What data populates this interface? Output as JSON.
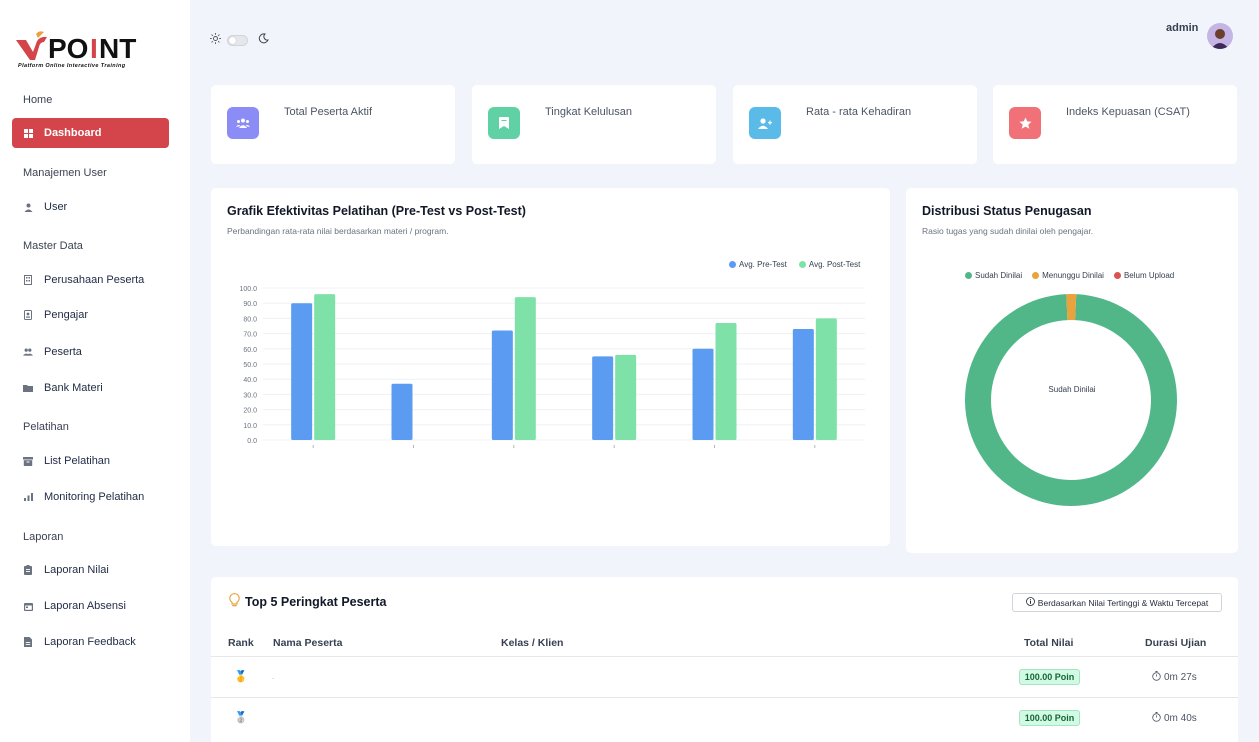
{
  "brand": {
    "name": "POINT",
    "tagline": "Platform Online Interactive Training"
  },
  "header": {
    "user_name": "admin"
  },
  "sidebar": {
    "sections": {
      "home": "Home",
      "user_mgmt": "Manajemen User",
      "master": "Master Data",
      "training": "Pelatihan",
      "report": "Laporan"
    },
    "items": {
      "dashboard": "Dashboard",
      "user": "User",
      "perusahaan": "Perusahaan Peserta",
      "pengajar": "Pengajar",
      "peserta": "Peserta",
      "bank_materi": "Bank Materi",
      "list_pelatihan": "List Pelatihan",
      "monitoring": "Monitoring Pelatihan",
      "laporan_nilai": "Laporan Nilai",
      "laporan_absensi": "Laporan Absensi",
      "laporan_feedback": "Laporan Feedback"
    }
  },
  "stats": [
    {
      "label": "Total Peserta Aktif",
      "color": "#8b8cf6",
      "icon": "users-icon"
    },
    {
      "label": "Tingkat Kelulusan",
      "color": "#5fd1a4",
      "icon": "bookmark-icon"
    },
    {
      "label": "Rata - rata Kehadiran",
      "color": "#5bbbe8",
      "icon": "user-plus-icon"
    },
    {
      "label": "Indeks Kepuasan (CSAT)",
      "color": "#f07178",
      "icon": "star-icon"
    }
  ],
  "effectiveness": {
    "title": "Grafik Efektivitas Pelatihan (Pre-Test vs Post-Test)",
    "subtitle": "Perbandingan rata-rata nilai berdasarkan materi / program."
  },
  "distribution": {
    "title": "Distribusi Status Penugasan",
    "subtitle": "Rasio tugas yang sudah dinilai oleh pengajar."
  },
  "chart_data": [
    {
      "type": "bar",
      "categories": [
        "",
        "",
        "",
        "",
        "",
        ""
      ],
      "series": [
        {
          "name": "Avg. Pre-Test",
          "color": "#5b9cf2",
          "values": [
            90,
            37,
            72,
            55,
            60,
            73
          ]
        },
        {
          "name": "Avg. Post-Test",
          "color": "#7ee2a8",
          "values": [
            96,
            null,
            94,
            56,
            77,
            80
          ]
        }
      ],
      "ylim": [
        0,
        100
      ],
      "yticks": [
        "0.0",
        "10.0",
        "20.0",
        "30.0",
        "40.0",
        "50.0",
        "60.0",
        "70.0",
        "80.0",
        "90.0",
        "100.0"
      ],
      "legend": "top-right",
      "grid": true
    },
    {
      "type": "pie",
      "labels": [
        "Sudah Dinilai",
        "Menunggu Dinilai",
        "Belum Upload"
      ],
      "values": [
        98.5,
        1.5,
        0
      ],
      "colors": [
        "#52b788",
        "#e8a33d",
        "#d9534f"
      ],
      "center_label": "Sudah Dinilai",
      "legend": "top"
    }
  ],
  "ranking": {
    "title": "Top 5 Peringkat Peserta",
    "note": "Berdasarkan Nilai Tertinggi & Waktu Tercepat",
    "headers": {
      "rank": "Rank",
      "name": "Nama Peserta",
      "kelas": "Kelas / Klien",
      "nilai": "Total Nilai",
      "durasi": "Durasi Ujian"
    },
    "rows": [
      {
        "medal": "🥇",
        "name": ".",
        "kelas": "",
        "nilai": "100.00 Poin",
        "durasi": "0m 27s"
      },
      {
        "medal": "🥈",
        "name": "",
        "kelas": "",
        "nilai": "100.00 Poin",
        "durasi": "0m 40s"
      }
    ]
  }
}
